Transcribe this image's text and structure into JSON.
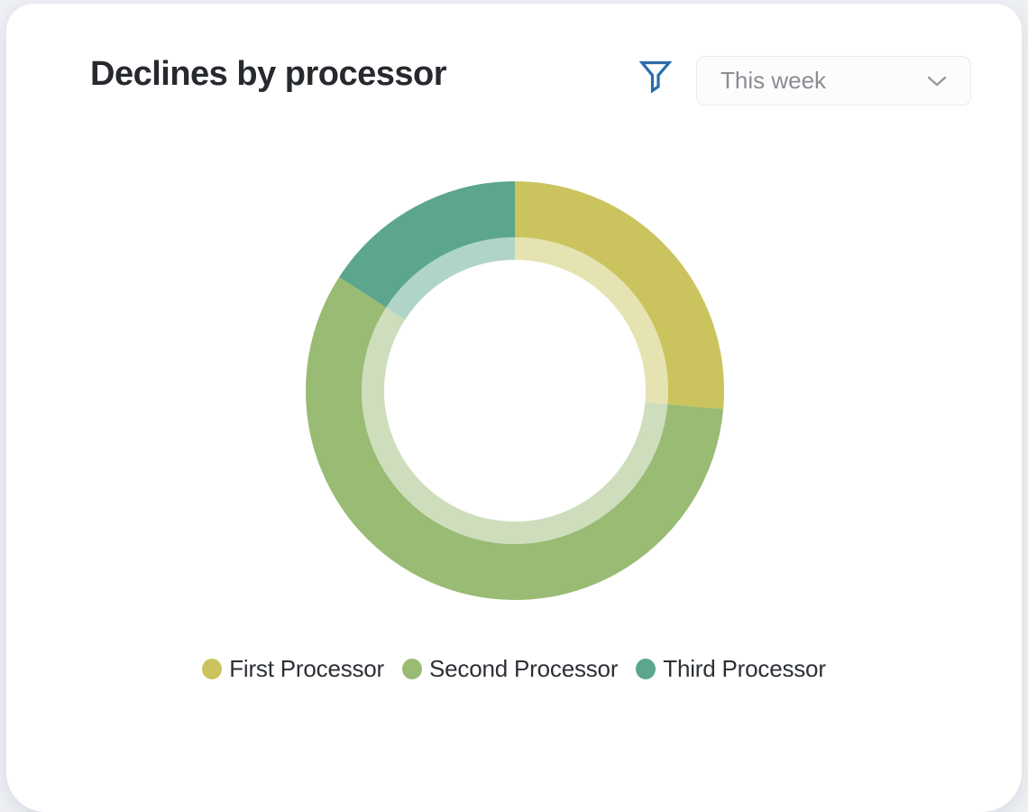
{
  "card": {
    "title": "Declines by processor",
    "filter": {
      "icon": "funnel-icon",
      "icon_color": "#2a6cab"
    },
    "period_selector": {
      "value": "This week",
      "chevron_icon": "chevron-down-icon",
      "text_color": "#8a8d92"
    }
  },
  "chart_data": {
    "type": "pie",
    "variant": "donut",
    "title": "Declines by processor",
    "categories": [
      "First Processor",
      "Second Processor",
      "Third Processor"
    ],
    "values": [
      26.4,
      57.7,
      15.9
    ],
    "unit": "%",
    "colors": [
      "#cbc45e",
      "#99bb74",
      "#5ba68c"
    ],
    "start_angle_deg": 0,
    "direction": "clockwise",
    "inner_ring_alpha": 0.48,
    "legend_position": "bottom"
  }
}
